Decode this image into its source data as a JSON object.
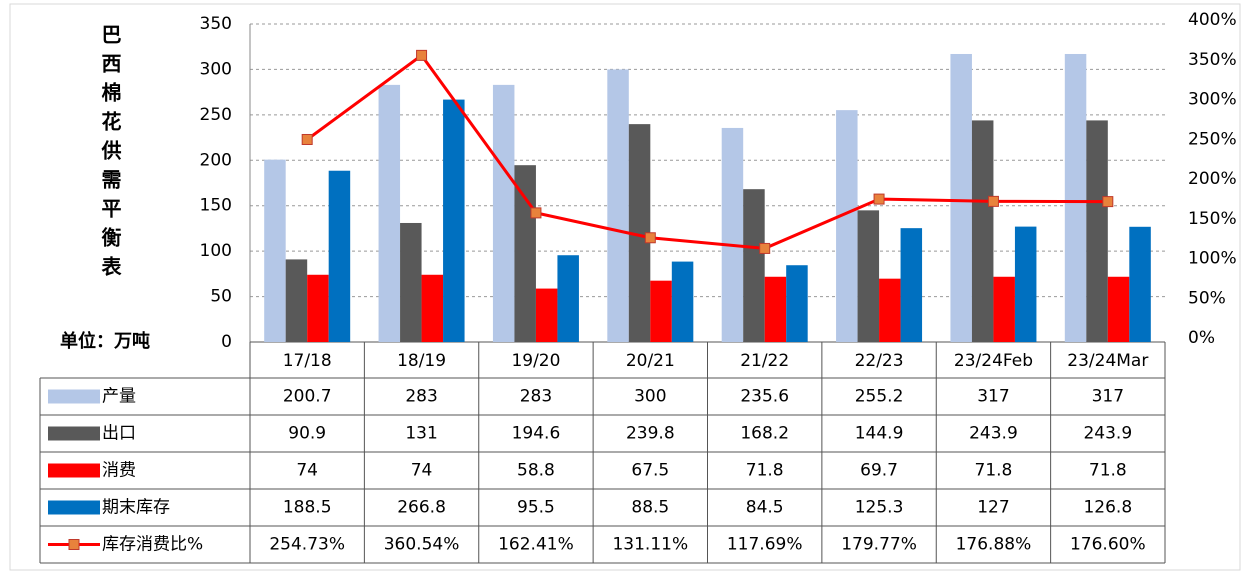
{
  "chart_data": {
    "type": "bar",
    "title": "巴西棉花供需平衡表",
    "unit": "单位：万吨",
    "categories": [
      "17/18",
      "18/19",
      "19/20",
      "20/21",
      "21/22",
      "22/23",
      "23/24Feb",
      "23/24Mar"
    ],
    "series": [
      {
        "name": "产量",
        "color": "#b4c7e7",
        "values": [
          200.7,
          283,
          283,
          300,
          235.6,
          255.2,
          317,
          317
        ]
      },
      {
        "name": "出口",
        "color": "#595959",
        "values": [
          90.9,
          131,
          194.6,
          239.8,
          168.2,
          144.9,
          243.9,
          243.9
        ]
      },
      {
        "name": "消费",
        "color": "#ff0000",
        "values": [
          74,
          74,
          58.8,
          67.5,
          71.8,
          69.7,
          71.8,
          71.8
        ]
      },
      {
        "name": "期末库存",
        "color": "#0070c0",
        "values": [
          188.5,
          266.8,
          95.5,
          88.5,
          84.5,
          125.3,
          127,
          126.8
        ]
      },
      {
        "name": "库存消费比%",
        "color": "#ff0000",
        "type": "line",
        "axis": "y2",
        "marker_color": "#e8823c",
        "values": [
          254.73,
          360.54,
          162.41,
          131.11,
          117.69,
          179.77,
          176.88,
          176.6
        ],
        "value_labels": [
          "254.73%",
          "360.54%",
          "162.41%",
          "131.11%",
          "117.69%",
          "179.77%",
          "176.88%",
          "176.60%"
        ]
      }
    ],
    "ylim": [
      0,
      350
    ],
    "yticks": [
      0,
      50,
      100,
      150,
      200,
      250,
      300,
      350
    ],
    "y2lim": [
      0,
      400
    ],
    "y2ticks": [
      {
        "value": 0,
        "label": "0%"
      },
      {
        "value": 50,
        "label": "50%"
      },
      {
        "value": 100,
        "label": "100%"
      },
      {
        "value": 150,
        "label": "150%"
      },
      {
        "value": 200,
        "label": "200%"
      },
      {
        "value": 250,
        "label": "250%"
      },
      {
        "value": 300,
        "label": "300%"
      },
      {
        "value": 350,
        "label": "350%"
      },
      {
        "value": 400,
        "label": "400%"
      }
    ],
    "grid": true
  }
}
